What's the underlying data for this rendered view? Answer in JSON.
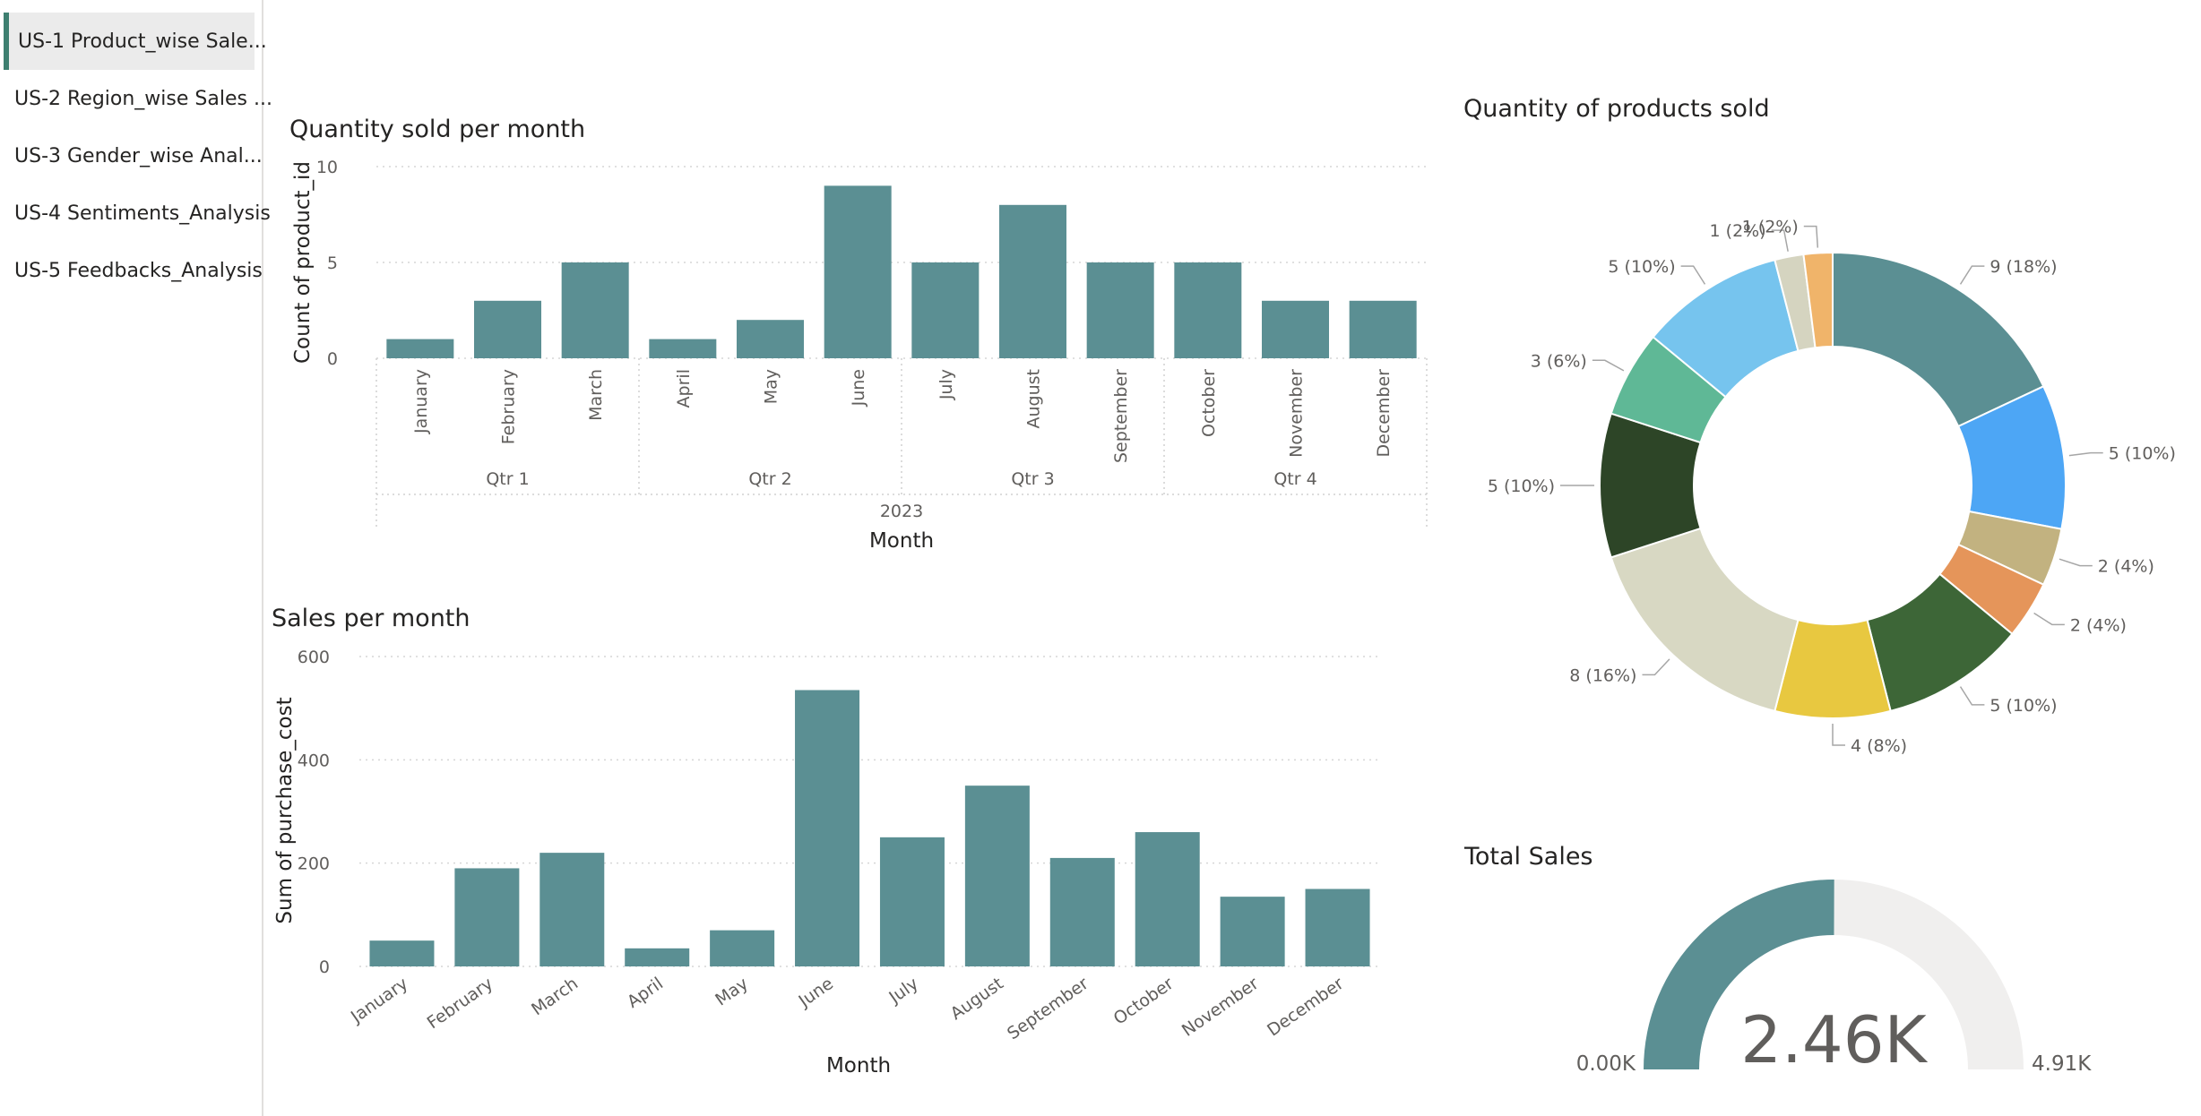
{
  "sidebar": {
    "items": [
      {
        "label": "US-1 Product_wise Sale...",
        "active": true
      },
      {
        "label": "US-2 Region_wise Sales ...",
        "active": false
      },
      {
        "label": "US-3 Gender_wise Anal...",
        "active": false
      },
      {
        "label": "US-4 Sentiments_Analysis",
        "active": false
      },
      {
        "label": "US-5 Feedbacks_Analysis",
        "active": false
      }
    ]
  },
  "colors": {
    "bar": "#5b8f93",
    "accent": "#3e7f70",
    "gauge_track": "#f0efee",
    "donut": [
      "#5b8f93",
      "#4da6f5",
      "#c2b280",
      "#e5955a",
      "#3d6637",
      "#e8c840",
      "#d8d8c3",
      "#2d4527",
      "#5fb896",
      "#76c4ee",
      "#d5d4c0",
      "#f0b46a"
    ]
  },
  "chart_data": [
    {
      "type": "bar",
      "title": "Quantity sold per month",
      "xlabel": "Month",
      "ylabel": "Count of product_id",
      "categories": [
        "January",
        "February",
        "March",
        "April",
        "May",
        "June",
        "July",
        "August",
        "September",
        "October",
        "November",
        "December"
      ],
      "values": [
        1,
        3,
        5,
        1,
        2,
        9,
        5,
        8,
        5,
        5,
        3,
        3
      ],
      "quarters": [
        "Qtr 1",
        "Qtr 2",
        "Qtr 3",
        "Qtr 4"
      ],
      "year": "2023",
      "yticks": [
        "0",
        "5",
        "10"
      ],
      "ylim": [
        0,
        10
      ],
      "grid": true
    },
    {
      "type": "bar",
      "title": "Sales per month",
      "xlabel": "Month",
      "ylabel": "Sum of purchase_cost",
      "categories": [
        "January",
        "February",
        "March",
        "April",
        "May",
        "June",
        "July",
        "August",
        "September",
        "October",
        "November",
        "December"
      ],
      "values": [
        50,
        190,
        220,
        35,
        70,
        535,
        250,
        350,
        210,
        260,
        135,
        150
      ],
      "yticks": [
        "0",
        "200",
        "400",
        "600"
      ],
      "ylim": [
        0,
        600
      ],
      "grid": true
    },
    {
      "type": "pie",
      "title": "Quantity of products sold",
      "values": [
        9,
        5,
        2,
        2,
        5,
        4,
        8,
        5,
        3,
        5,
        1,
        1
      ],
      "labels": [
        "9 (18%)",
        "5 (10%)",
        "2 (4%)",
        "2 (4%)",
        "5 (10%)",
        "4 (8%)",
        "8 (16%)",
        "5 (10%)",
        "3 (6%)",
        "5 (10%)",
        "1 (2%)",
        "1 (2%)"
      ]
    },
    {
      "type": "gauge",
      "title": "Total Sales",
      "value": 2.46,
      "min": 0,
      "max": 4.91,
      "value_label": "2.46K",
      "min_label": "0.00K",
      "max_label": "4.91K"
    }
  ]
}
